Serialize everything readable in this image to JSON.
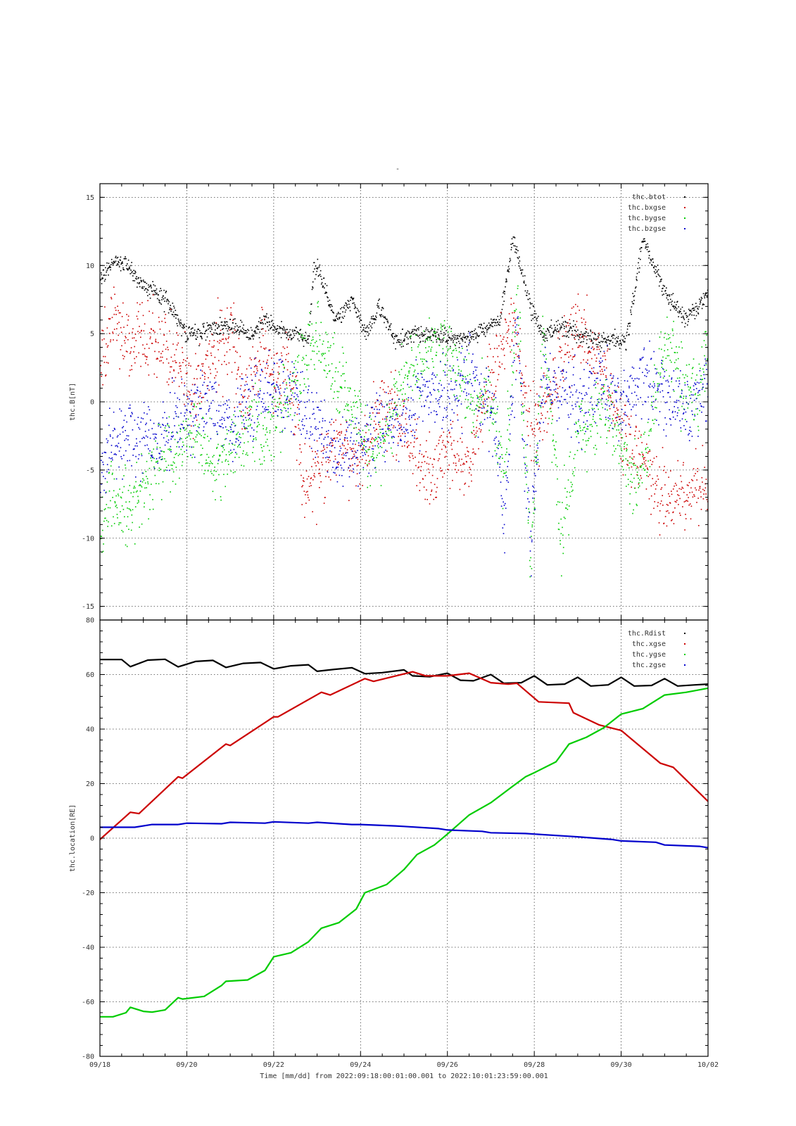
{
  "page_title": "-",
  "x_label": "Time [mm/dd]  from 2022:09:18:00:01:00.001  to  2022:10:01:23:59:00.001",
  "x_ticks": [
    "09/18",
    "09/20",
    "09/22",
    "09/24",
    "09/26",
    "09/28",
    "09/30",
    "10/02"
  ],
  "chart_data": [
    {
      "type": "scatter",
      "ylabel": "thc.B[nT]",
      "xlim": [
        "09/18",
        "10/02"
      ],
      "ylim": [
        -16,
        16
      ],
      "yticks": [
        -15,
        -10,
        -5,
        0,
        5,
        10,
        15
      ],
      "grid": true,
      "legend_position": "top-right",
      "series": [
        {
          "name": "thc.btot",
          "color": "#000000",
          "x_days": [
            0,
            0.3,
            0.6,
            1,
            1.5,
            2,
            2.3,
            2.6,
            3,
            3.5,
            3.8,
            4.3,
            4.6,
            4.8,
            4.9,
            5,
            5.4,
            5.8,
            6.1,
            6.4,
            6.8,
            7.2,
            7.7,
            8.2,
            8.7,
            9.2,
            9.5,
            9.9,
            10.2,
            10.6,
            11,
            11.5,
            12.1,
            12.5,
            13,
            13.5,
            14
          ],
          "values": [
            9,
            10.5,
            10,
            8.5,
            7.5,
            5,
            5,
            5.5,
            5.5,
            5,
            6,
            5,
            5,
            4.5,
            9.5,
            10,
            6,
            7.5,
            5,
            7,
            4.5,
            5,
            5,
            4.5,
            5,
            6,
            12,
            7,
            5,
            5.5,
            5,
            4.5,
            4.5,
            12,
            8,
            6,
            8
          ]
        },
        {
          "name": "thc.bxgse",
          "color": "#cc0000",
          "x_days": [
            0,
            0.3,
            0.6,
            1,
            1.4,
            1.8,
            2.2,
            2.5,
            3,
            3.3,
            3.7,
            4,
            4.3,
            4.7,
            5,
            5.5,
            6,
            6.5,
            7,
            7.6,
            8,
            8.5,
            9,
            9.5,
            9.9,
            10.3,
            10.7,
            11,
            11.3,
            11.7,
            12,
            12.4,
            12.8,
            13.2,
            13.6,
            14
          ],
          "values": [
            2,
            7,
            4,
            5,
            4,
            3,
            0,
            3,
            5,
            0,
            4,
            1,
            4,
            -7,
            -5,
            -3,
            -4,
            0,
            -2,
            -5.5,
            -3,
            -5,
            2,
            6,
            -2,
            0,
            4,
            5,
            4,
            1,
            -2,
            -4,
            -6,
            -7,
            -6.5,
            -6
          ]
        },
        {
          "name": "thc.bygse",
          "color": "#00cc00",
          "x_days": [
            0,
            0.3,
            0.6,
            1,
            1.4,
            1.8,
            2.2,
            2.6,
            3,
            3.4,
            3.8,
            4.2,
            4.6,
            5,
            5.4,
            5.8,
            6.2,
            6.6,
            7,
            7.4,
            7.8,
            8.2,
            8.6,
            9,
            9.3,
            9.6,
            9.9,
            10.2,
            10.6,
            11,
            11.3,
            11.6,
            12,
            12.3,
            12.6,
            13,
            13.3,
            13.7,
            14
          ],
          "values": [
            -9,
            -7,
            -8,
            -6,
            -4,
            -3,
            -2,
            -5,
            -3,
            -2,
            -2,
            0,
            2,
            5,
            2,
            0,
            -4,
            -2,
            2,
            3,
            4,
            3,
            0,
            0,
            -6,
            8,
            -12,
            5,
            -10,
            -2,
            -2,
            0,
            -4,
            -6,
            -3,
            5,
            2,
            0,
            4
          ]
        },
        {
          "name": "thc.bzgse",
          "color": "#0000cc",
          "x_days": [
            0,
            0.3,
            0.6,
            1,
            1.5,
            2,
            2.5,
            3,
            3.5,
            4,
            4.5,
            5,
            5.5,
            6,
            6.5,
            7,
            7.5,
            8,
            8.5,
            9,
            9.3,
            9.6,
            9.9,
            10.2,
            10.6,
            11,
            11.5,
            12,
            12.5,
            13,
            13.5,
            14
          ],
          "values": [
            -5,
            -3,
            -2,
            -3,
            -2,
            -1,
            0,
            -2,
            0,
            1,
            0,
            -2,
            -4,
            -3,
            -2,
            -1,
            1,
            0,
            2,
            0,
            -8,
            6,
            -10,
            2,
            1,
            0,
            1,
            0,
            2,
            1,
            -1,
            2
          ]
        }
      ]
    },
    {
      "type": "line",
      "ylabel": "thc.location[RE]",
      "xlim": [
        "09/18",
        "10/02"
      ],
      "ylim": [
        -80,
        80
      ],
      "yticks": [
        -80,
        -60,
        -40,
        -20,
        0,
        20,
        40,
        60,
        80
      ],
      "grid": true,
      "legend_position": "top-right",
      "series": [
        {
          "name": "thc.Rdist",
          "color": "#000000",
          "x_days": [
            0,
            0.5,
            0.7,
            1.1,
            1.5,
            1.8,
            2.2,
            2.6,
            2.9,
            3.3,
            3.7,
            4,
            4.4,
            4.8,
            5,
            5.4,
            5.8,
            6.1,
            6.5,
            7,
            7.2,
            7.6,
            8,
            8.3,
            8.6,
            9,
            9.3,
            9.7,
            10,
            10.3,
            10.7,
            11,
            11.3,
            11.7,
            12,
            12.3,
            12.7,
            13,
            13.3,
            13.7,
            14
          ],
          "values": [
            65.5,
            65.5,
            62.9,
            65.3,
            65.6,
            62.8,
            64.8,
            65.2,
            62.6,
            64.1,
            64.4,
            62.1,
            63.2,
            63.6,
            61.2,
            61.9,
            62.5,
            60.3,
            60.7,
            61.7,
            59.5,
            59.2,
            60.5,
            57.9,
            57.7,
            60,
            56.8,
            57,
            59.5,
            56.2,
            56.5,
            59,
            55.8,
            56.2,
            59,
            55.8,
            56,
            58.5,
            55.8,
            56.2,
            56.5
          ]
        },
        {
          "name": "thc.xgse",
          "color": "#cc0000",
          "x_days": [
            0,
            0.7,
            0.9,
            1.8,
            1.9,
            2.9,
            3,
            4,
            4.1,
            5.1,
            5.3,
            6.1,
            6.3,
            7.2,
            7.5,
            8,
            8.5,
            9,
            9.4,
            9.6,
            10.1,
            10.8,
            10.9,
            11.5,
            12,
            12.9,
            13.2,
            14
          ],
          "values": [
            -0.5,
            9.5,
            9,
            22.5,
            22,
            34.5,
            34,
            44.5,
            44.5,
            53.5,
            52.5,
            58.5,
            57.5,
            61,
            59.5,
            59.5,
            60.5,
            57,
            56.5,
            56.8,
            50,
            49.5,
            46,
            41.5,
            39.5,
            27.5,
            26,
            13.5
          ]
        },
        {
          "name": "thc.ygse",
          "color": "#00cc00",
          "x_days": [
            0,
            0.3,
            0.6,
            0.7,
            1,
            1.2,
            1.5,
            1.8,
            1.9,
            2.4,
            2.8,
            2.9,
            3.4,
            3.8,
            4,
            4.4,
            4.8,
            5.1,
            5.5,
            5.9,
            6.1,
            6.6,
            7,
            7.3,
            7.7,
            8,
            8.5,
            9,
            9.5,
            9.8,
            10,
            10.5,
            10.8,
            11.2,
            11.6,
            12,
            12.5,
            13,
            13.5,
            14
          ],
          "values": [
            -65.5,
            -65.5,
            -64,
            -62,
            -63.5,
            -63.8,
            -63,
            -58.5,
            -59,
            -58,
            -54,
            -52.5,
            -52,
            -48.5,
            -43.5,
            -42,
            -38,
            -33,
            -31,
            -26,
            -20,
            -17,
            -11.5,
            -6,
            -2.5,
            1.5,
            8.5,
            13,
            19,
            22.5,
            24,
            28,
            34.5,
            37,
            40.5,
            45.5,
            47.5,
            52.5,
            53.5,
            55
          ]
        },
        {
          "name": "thc.zgse",
          "color": "#0000cc",
          "x_days": [
            0,
            0.8,
            1.2,
            1.8,
            2,
            2.8,
            3,
            3.8,
            4,
            4.8,
            5,
            5.8,
            6,
            6.8,
            7,
            7.8,
            8,
            8.8,
            9,
            9.8,
            10,
            10.8,
            11,
            11.8,
            12,
            12.8,
            13,
            13.8,
            14
          ],
          "values": [
            4,
            4,
            5,
            5,
            5.5,
            5.3,
            5.8,
            5.5,
            6,
            5.5,
            5.8,
            5,
            5,
            4.5,
            4.3,
            3.5,
            3,
            2.5,
            2,
            1.7,
            1.5,
            0.7,
            0.5,
            -0.5,
            -1,
            -1.5,
            -2.5,
            -3,
            -3.5
          ]
        }
      ]
    }
  ]
}
